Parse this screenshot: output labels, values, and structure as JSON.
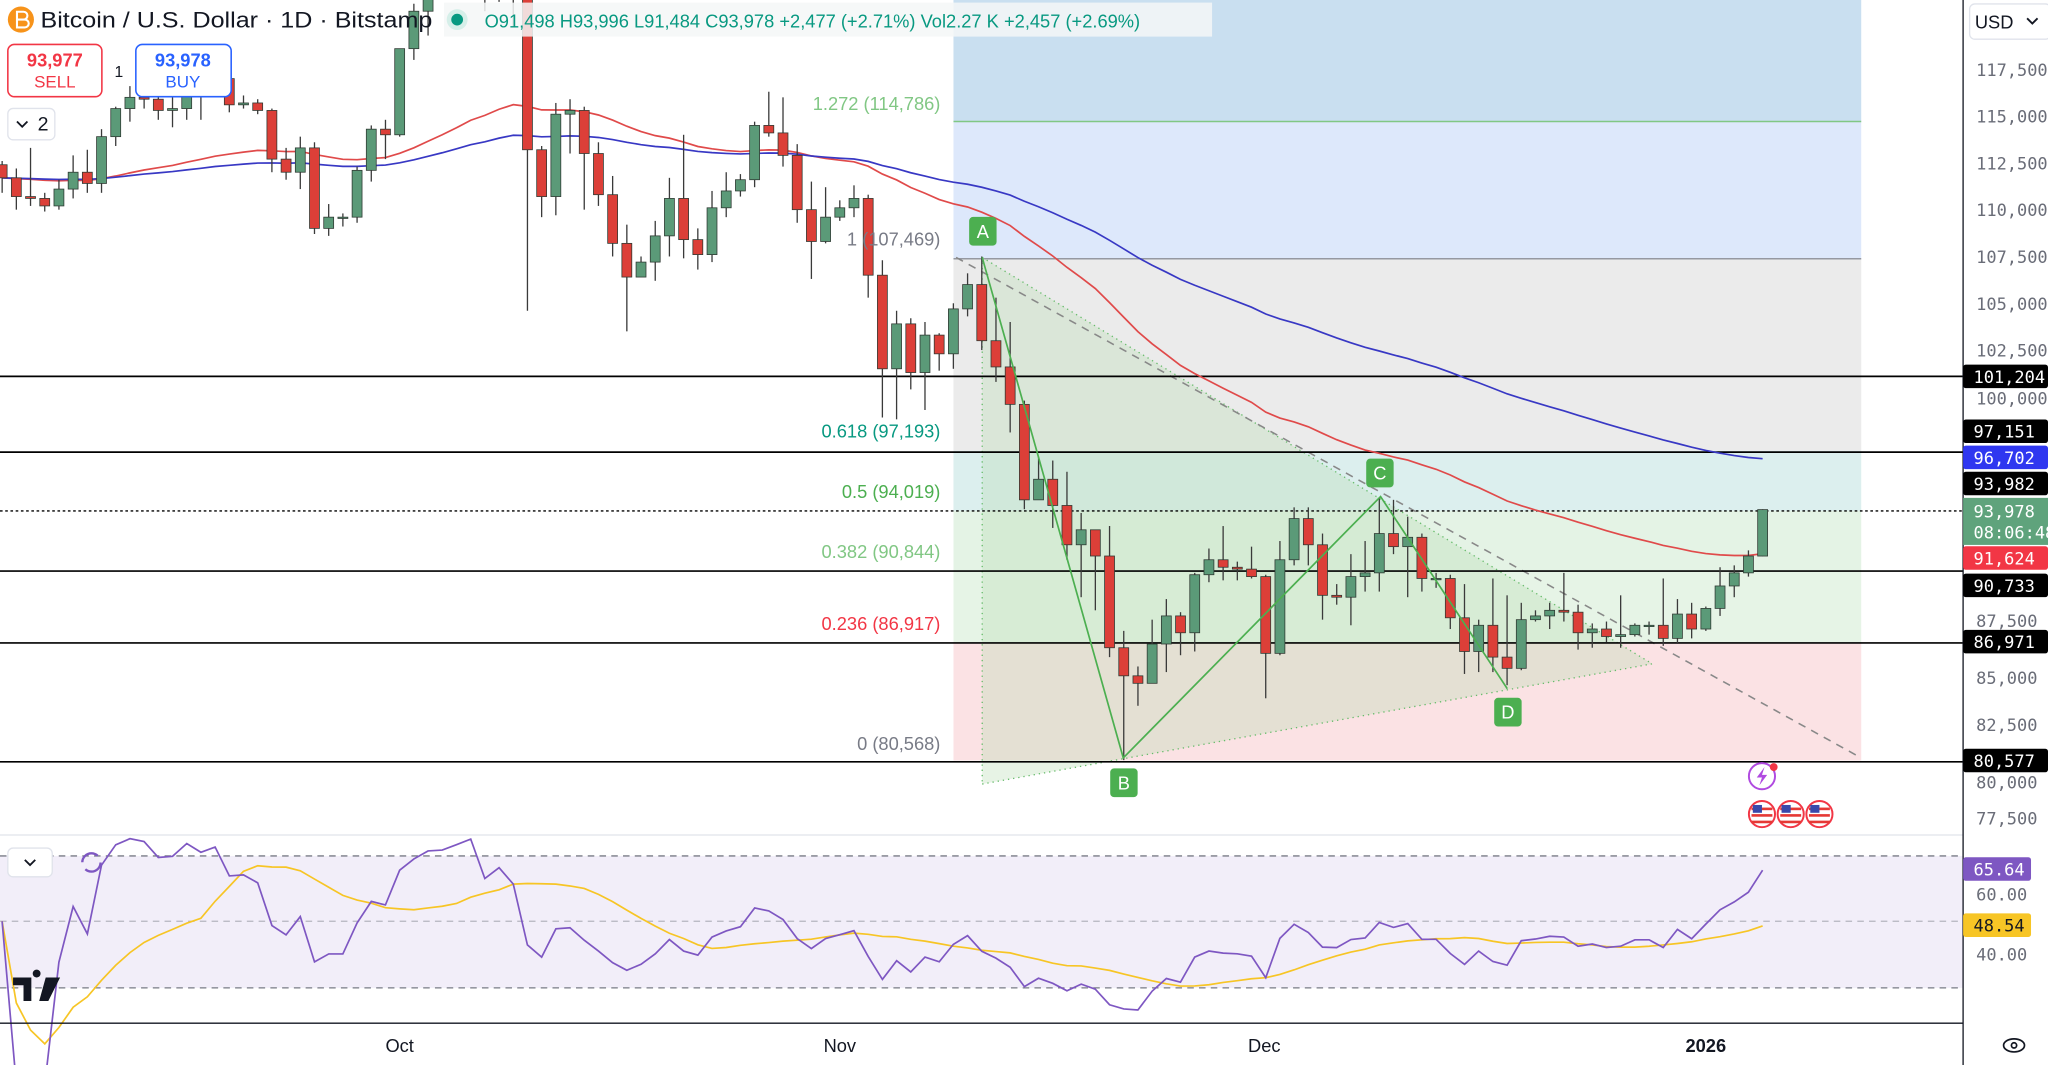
{
  "header": {
    "symbol_title": "Bitcoin / U.S. Dollar · 1D · Bitstamp",
    "open": "O91,498",
    "high": "H93,996",
    "low": "L91,484",
    "close": "C93,978",
    "change": "+2,477 (+2.71%)",
    "volume": "Vol2.27 K",
    "volume_change": "+2,457 (+2.69%)",
    "market_status_color": "#089981"
  },
  "trade": {
    "sell_price": "93,977",
    "sell_label": "SELL",
    "spread": "1",
    "buy_price": "93,978",
    "buy_label": "BUY",
    "indicators_count": "2"
  },
  "currency": "USD",
  "fib_levels": [
    {
      "label": "1.272 (114,786)",
      "value": 114786,
      "color": "#81c784"
    },
    {
      "label": "1 (107,469)",
      "value": 107469,
      "color": "#787b86"
    },
    {
      "label": "0.618 (97,193)",
      "value": 97193,
      "color": "#089981"
    },
    {
      "label": "0.5 (94,019)",
      "value": 94019,
      "color": "#4caf50"
    },
    {
      "label": "0.382 (90,844)",
      "value": 90844,
      "color": "#81c784"
    },
    {
      "label": "0.236 (86,917)",
      "value": 86917,
      "color": "#f23645"
    },
    {
      "label": "0 (80,568)",
      "value": 80568,
      "color": "#787b86"
    }
  ],
  "pattern_points": [
    {
      "label": "A",
      "date": "2025-11-11",
      "price": 107469
    },
    {
      "label": "B",
      "date": "2025-11-21",
      "price": 80568
    },
    {
      "label": "C",
      "date": "2025-12-09",
      "price": 94600
    },
    {
      "label": "D",
      "date": "2025-12-18",
      "price": 84600
    }
  ],
  "price_axis": {
    "ticks": [
      "117,500",
      "115,000",
      "112,500",
      "110,000",
      "107,500",
      "105,000",
      "102,500",
      "100,000",
      "87,500",
      "85,000",
      "82,500",
      "80,000",
      "77,500"
    ],
    "tags": [
      {
        "text": "101,204",
        "value": 101204,
        "color": "#000000"
      },
      {
        "text": "97,151",
        "value": 97151,
        "color": "#000000"
      },
      {
        "text": "96,702",
        "value": 96702,
        "color": "#2f37f0"
      },
      {
        "text": "93,982",
        "value": 93982,
        "color": "#000000"
      },
      {
        "text": "91,624",
        "value": 91624,
        "color": "#f23645"
      },
      {
        "text": "90,733",
        "value": 90733,
        "color": "#000000"
      },
      {
        "text": "86,971",
        "value": 86971,
        "color": "#000000"
      },
      {
        "text": "80,577",
        "value": 80577,
        "color": "#000000"
      }
    ],
    "last_price": "93,978",
    "countdown": "08:06:48",
    "last_price_color": "#5fa37c"
  },
  "rsi": {
    "ticks": [
      "60.00",
      "40.00"
    ],
    "value": "65.64",
    "value_color": "#7e57c2",
    "ma_value": "48.54",
    "ma_color": "#f7c525",
    "upper_band": 70,
    "middle_band": 50,
    "lower_band": 30
  },
  "time_axis": [
    "Oct",
    "Nov",
    "Dec",
    "2026"
  ],
  "chart_data": {
    "type": "candlestick",
    "title": "Bitcoin / U.S. Dollar · 1D · Bitstamp",
    "ylim": [
      77500,
      121000
    ],
    "colors": {
      "up": "#5b9a78",
      "down": "#dc3f38",
      "ma_fast": "#e04a4a",
      "ma_slow": "#3838c4",
      "rsi": "#7e57c2",
      "rsi_ma": "#f7c525"
    },
    "candles_columns": [
      "date",
      "open",
      "high",
      "low",
      "close"
    ],
    "candles": [
      [
        "2025-09-03",
        112400,
        112600,
        110900,
        111700
      ],
      [
        "2025-09-04",
        111700,
        112200,
        110000,
        110700
      ],
      [
        "2025-09-05",
        110700,
        113300,
        110200,
        110600
      ],
      [
        "2025-09-06",
        110600,
        110900,
        109900,
        110200
      ],
      [
        "2025-09-07",
        110200,
        111600,
        110000,
        111100
      ],
      [
        "2025-09-08",
        111100,
        112900,
        110600,
        112000
      ],
      [
        "2025-09-09",
        112000,
        113200,
        110900,
        111400
      ],
      [
        "2025-09-10",
        111400,
        114300,
        110900,
        113900
      ],
      [
        "2025-09-11",
        113900,
        115500,
        113400,
        115400
      ],
      [
        "2025-09-12",
        115400,
        116600,
        114700,
        116000
      ],
      [
        "2025-09-13",
        116000,
        116400,
        115400,
        115900
      ],
      [
        "2025-09-14",
        115900,
        116100,
        114800,
        115300
      ],
      [
        "2025-09-15",
        115300,
        116800,
        114400,
        115400
      ],
      [
        "2025-09-16",
        115400,
        117000,
        114800,
        116800
      ],
      [
        "2025-09-17",
        116800,
        117300,
        114800,
        116400
      ],
      [
        "2025-09-18",
        116400,
        117900,
        116100,
        117000
      ],
      [
        "2025-09-19",
        117000,
        117500,
        115200,
        115600
      ],
      [
        "2025-09-20",
        115600,
        116100,
        115400,
        115700
      ],
      [
        "2025-09-21",
        115700,
        115900,
        115100,
        115300
      ],
      [
        "2025-09-22",
        115300,
        115400,
        112000,
        112700
      ],
      [
        "2025-09-23",
        112700,
        113300,
        111600,
        112000
      ],
      [
        "2025-09-24",
        112000,
        113900,
        111100,
        113300
      ],
      [
        "2025-09-25",
        113300,
        113600,
        108700,
        109000
      ],
      [
        "2025-09-26",
        109000,
        110300,
        108600,
        109600
      ],
      [
        "2025-09-27",
        109600,
        109800,
        109100,
        109600
      ],
      [
        "2025-09-28",
        109600,
        112300,
        109300,
        112100
      ],
      [
        "2025-09-29",
        112100,
        114500,
        111500,
        114300
      ],
      [
        "2025-09-30",
        114300,
        114800,
        112700,
        114000
      ],
      [
        "2025-10-01",
        114000,
        118600,
        113900,
        118600
      ],
      [
        "2025-10-02",
        118600,
        121000,
        118000,
        120600
      ],
      [
        "2025-10-03",
        120600,
        123900,
        119300,
        122200
      ],
      [
        "2025-10-04",
        122200,
        122800,
        121500,
        122400
      ],
      [
        "2025-10-05",
        122400,
        125700,
        122100,
        123500
      ],
      [
        "2025-10-06",
        123500,
        126200,
        123100,
        124700
      ],
      [
        "2025-10-07",
        124700,
        125100,
        120600,
        121400
      ],
      [
        "2025-10-08",
        121400,
        124100,
        121100,
        123300
      ],
      [
        "2025-10-09",
        123300,
        123800,
        119800,
        121700
      ],
      [
        "2025-10-10",
        121700,
        122500,
        104600,
        113200
      ],
      [
        "2025-10-11",
        113200,
        113400,
        109600,
        110700
      ],
      [
        "2025-10-12",
        110700,
        115700,
        109700,
        115100
      ],
      [
        "2025-10-13",
        115100,
        115900,
        113000,
        115300
      ],
      [
        "2025-10-14",
        115300,
        115500,
        110000,
        113000
      ],
      [
        "2025-10-15",
        113000,
        113600,
        110200,
        110800
      ],
      [
        "2025-10-16",
        110800,
        111800,
        107500,
        108200
      ],
      [
        "2025-10-17",
        108200,
        109200,
        103500,
        106400
      ],
      [
        "2025-10-18",
        106400,
        107500,
        106400,
        107200
      ],
      [
        "2025-10-19",
        107200,
        109400,
        106200,
        108600
      ],
      [
        "2025-10-20",
        108600,
        111700,
        107500,
        110600
      ],
      [
        "2025-10-21",
        110600,
        114000,
        107400,
        108400
      ],
      [
        "2025-10-22",
        108400,
        109000,
        106800,
        107600
      ],
      [
        "2025-10-23",
        107600,
        111000,
        107200,
        110100
      ],
      [
        "2025-10-24",
        110100,
        112000,
        109600,
        111000
      ],
      [
        "2025-10-25",
        111000,
        111900,
        110700,
        111600
      ],
      [
        "2025-10-26",
        111600,
        114700,
        111200,
        114500
      ],
      [
        "2025-10-27",
        114500,
        116300,
        113900,
        114100
      ],
      [
        "2025-10-28",
        114100,
        116000,
        112300,
        112900
      ],
      [
        "2025-10-29",
        112900,
        113500,
        109300,
        110000
      ],
      [
        "2025-10-30",
        110000,
        111500,
        106300,
        108300
      ],
      [
        "2025-10-31",
        108300,
        111200,
        108200,
        109600
      ],
      [
        "2025-11-01",
        109600,
        110500,
        109400,
        110100
      ],
      [
        "2025-11-02",
        110100,
        111300,
        109600,
        110600
      ],
      [
        "2025-11-03",
        110600,
        110800,
        105300,
        106500
      ],
      [
        "2025-11-04",
        106500,
        107300,
        98900,
        101500
      ],
      [
        "2025-11-05",
        101500,
        104600,
        98800,
        103900
      ],
      [
        "2025-11-06",
        103900,
        104200,
        100400,
        101300
      ],
      [
        "2025-11-07",
        101300,
        104000,
        99300,
        103300
      ],
      [
        "2025-11-08",
        103300,
        103400,
        101400,
        102300
      ],
      [
        "2025-11-09",
        102300,
        105000,
        101500,
        104700
      ],
      [
        "2025-11-10",
        104700,
        106600,
        104300,
        106000
      ],
      [
        "2025-11-11",
        106000,
        107500,
        102500,
        103000
      ],
      [
        "2025-11-12",
        103000,
        105300,
        100800,
        101600
      ],
      [
        "2025-11-13",
        101600,
        104000,
        98100,
        99600
      ],
      [
        "2025-11-14",
        99600,
        99800,
        94000,
        94500
      ],
      [
        "2025-11-15",
        94500,
        96800,
        94500,
        95600
      ],
      [
        "2025-11-16",
        95600,
        96600,
        93000,
        94200
      ],
      [
        "2025-11-17",
        94200,
        96000,
        91300,
        92100
      ],
      [
        "2025-11-18",
        92100,
        93800,
        89300,
        92900
      ],
      [
        "2025-11-19",
        92900,
        92900,
        88600,
        91500
      ],
      [
        "2025-11-20",
        91500,
        93100,
        86100,
        86600
      ],
      [
        "2025-11-21",
        86600,
        87500,
        80600,
        85100
      ],
      [
        "2025-11-22",
        85100,
        85600,
        83500,
        84700
      ],
      [
        "2025-11-23",
        84700,
        88100,
        84700,
        86800
      ],
      [
        "2025-11-24",
        86800,
        89200,
        85300,
        88300
      ],
      [
        "2025-11-25",
        88300,
        88500,
        86200,
        87400
      ],
      [
        "2025-11-26",
        87400,
        90600,
        86400,
        90500
      ],
      [
        "2025-11-27",
        90500,
        91900,
        90100,
        91300
      ],
      [
        "2025-11-28",
        91300,
        93100,
        90200,
        90900
      ],
      [
        "2025-11-29",
        90900,
        91200,
        90200,
        90800
      ],
      [
        "2025-11-30",
        90800,
        92000,
        90300,
        90400
      ],
      [
        "2025-12-01",
        90400,
        90500,
        83900,
        86300
      ],
      [
        "2025-12-02",
        86300,
        92300,
        86200,
        91300
      ],
      [
        "2025-12-03",
        91300,
        94100,
        91000,
        93500
      ],
      [
        "2025-12-04",
        93500,
        94100,
        91000,
        92100
      ],
      [
        "2025-12-05",
        92100,
        92700,
        88100,
        89400
      ],
      [
        "2025-12-06",
        89400,
        90000,
        88900,
        89300
      ],
      [
        "2025-12-07",
        89300,
        91600,
        87800,
        90400
      ],
      [
        "2025-12-08",
        90400,
        92300,
        89600,
        90600
      ],
      [
        "2025-12-09",
        90600,
        94600,
        89600,
        92700
      ],
      [
        "2025-12-10",
        92700,
        94500,
        91600,
        92000
      ],
      [
        "2025-12-11",
        92000,
        93600,
        89300,
        92500
      ],
      [
        "2025-12-12",
        92500,
        92700,
        89600,
        90300
      ],
      [
        "2025-12-13",
        90300,
        90600,
        89800,
        90300
      ],
      [
        "2025-12-14",
        90300,
        90500,
        87600,
        88200
      ],
      [
        "2025-12-15",
        88200,
        90000,
        85200,
        86400
      ],
      [
        "2025-12-16",
        86400,
        88100,
        85300,
        87800
      ],
      [
        "2025-12-17",
        87800,
        90300,
        85300,
        86100
      ],
      [
        "2025-12-18",
        86100,
        89400,
        84600,
        85500
      ],
      [
        "2025-12-19",
        85500,
        89000,
        85400,
        88100
      ],
      [
        "2025-12-20",
        88100,
        88600,
        88000,
        88300
      ],
      [
        "2025-12-21",
        88300,
        89000,
        87600,
        88600
      ],
      [
        "2025-12-22",
        88600,
        90600,
        88000,
        88500
      ],
      [
        "2025-12-23",
        88500,
        88900,
        86500,
        87400
      ],
      [
        "2025-12-24",
        87400,
        87900,
        86600,
        87600
      ],
      [
        "2025-12-25",
        87600,
        88000,
        86900,
        87200
      ],
      [
        "2025-12-26",
        87200,
        89400,
        86600,
        87300
      ],
      [
        "2025-12-27",
        87300,
        87900,
        87200,
        87800
      ],
      [
        "2025-12-28",
        87800,
        88000,
        87300,
        87800
      ],
      [
        "2025-12-29",
        87800,
        90300,
        86700,
        87100
      ],
      [
        "2025-12-30",
        87100,
        89200,
        86800,
        88400
      ],
      [
        "2025-12-31",
        88400,
        89000,
        87100,
        87600
      ],
      [
        "2026-01-01",
        87600,
        88800,
        87500,
        88700
      ],
      [
        "2026-01-02",
        88700,
        90900,
        88300,
        89900
      ],
      [
        "2026-01-03",
        89900,
        91000,
        89300,
        90600
      ],
      [
        "2026-01-04",
        90600,
        91800,
        90400,
        91500
      ],
      [
        "2026-01-05",
        91498,
        93996,
        91484,
        93978
      ]
    ],
    "moving_averages": [
      {
        "last": 91624
      },
      {
        "last": 96702
      }
    ],
    "horizontal_levels": [
      101204,
      97151,
      93982,
      90733,
      86971,
      80577
    ]
  }
}
